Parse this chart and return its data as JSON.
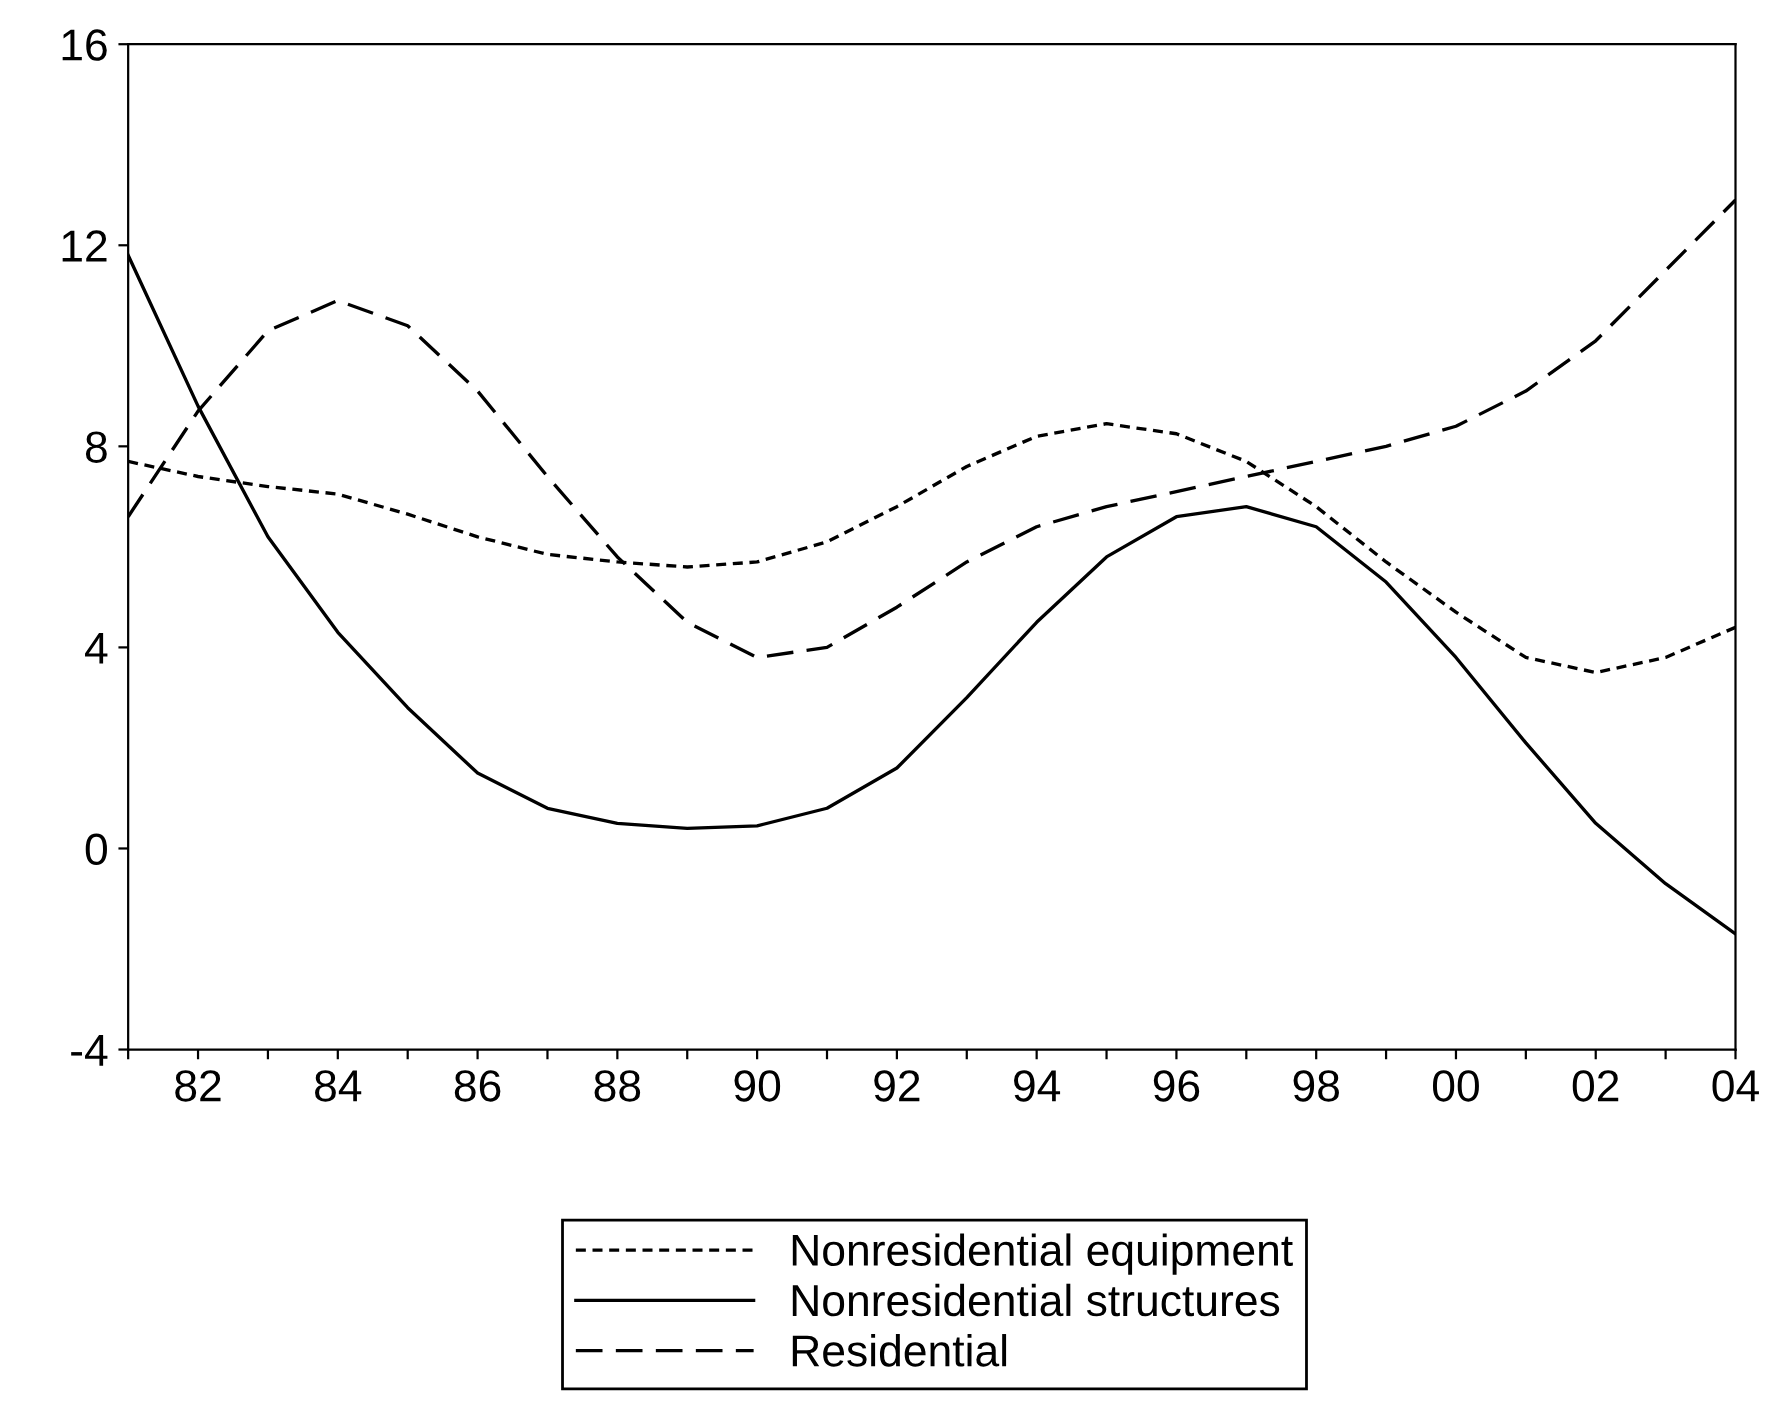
{
  "chart_data": {
    "type": "line",
    "x": [
      1981,
      1982,
      1983,
      1984,
      1985,
      1986,
      1987,
      1988,
      1989,
      1990,
      1991,
      1992,
      1993,
      1994,
      1995,
      1996,
      1997,
      1998,
      1999,
      2000,
      2001,
      2002,
      2003,
      2004
    ],
    "series": [
      {
        "name": "Nonresidential equipment",
        "color": "#000000",
        "line_style": "dotted",
        "values": [
          7.7,
          7.4,
          7.2,
          7.05,
          6.65,
          6.2,
          5.85,
          5.7,
          5.6,
          5.7,
          6.1,
          6.8,
          7.6,
          8.2,
          8.45,
          8.25,
          7.7,
          6.8,
          5.7,
          4.7,
          3.8,
          3.5,
          3.8,
          4.4
        ]
      },
      {
        "name": "Nonresidential structures",
        "color": "#000000",
        "line_style": "solid",
        "values": [
          11.8,
          8.8,
          6.2,
          4.3,
          2.8,
          1.5,
          0.8,
          0.5,
          0.4,
          0.45,
          0.8,
          1.6,
          3.0,
          4.5,
          5.8,
          6.6,
          6.8,
          6.4,
          5.3,
          3.8,
          2.1,
          0.5,
          -0.7,
          -1.7
        ]
      },
      {
        "name": "Residential",
        "color": "#000000",
        "line_style": "dashed",
        "values": [
          6.6,
          8.7,
          10.3,
          10.9,
          10.4,
          9.1,
          7.4,
          5.8,
          4.5,
          3.8,
          4.0,
          4.8,
          5.7,
          6.4,
          6.8,
          7.1,
          7.4,
          7.7,
          8.0,
          8.4,
          9.1,
          10.1,
          11.5,
          12.9
        ]
      }
    ],
    "xlim": [
      1981,
      2004
    ],
    "xticks": [
      {
        "value": 1981,
        "label": null
      },
      {
        "value": 1982,
        "label": "82"
      },
      {
        "value": 1983,
        "label": null
      },
      {
        "value": 1984,
        "label": "84"
      },
      {
        "value": 1985,
        "label": null
      },
      {
        "value": 1986,
        "label": "86"
      },
      {
        "value": 1987,
        "label": null
      },
      {
        "value": 1988,
        "label": "88"
      },
      {
        "value": 1989,
        "label": null
      },
      {
        "value": 1990,
        "label": "90"
      },
      {
        "value": 1991,
        "label": null
      },
      {
        "value": 1992,
        "label": "92"
      },
      {
        "value": 1993,
        "label": null
      },
      {
        "value": 1994,
        "label": "94"
      },
      {
        "value": 1995,
        "label": null
      },
      {
        "value": 1996,
        "label": "96"
      },
      {
        "value": 1997,
        "label": null
      },
      {
        "value": 1998,
        "label": "98"
      },
      {
        "value": 1999,
        "label": null
      },
      {
        "value": 2000,
        "label": "00"
      },
      {
        "value": 2001,
        "label": null
      },
      {
        "value": 2002,
        "label": "02"
      },
      {
        "value": 2003,
        "label": null
      },
      {
        "value": 2004,
        "label": "04"
      }
    ],
    "ylim": [
      -4,
      16
    ],
    "yticks": [
      -4,
      0,
      4,
      8,
      12,
      16
    ],
    "grid": false,
    "legend": "bottom",
    "marker": "none"
  }
}
